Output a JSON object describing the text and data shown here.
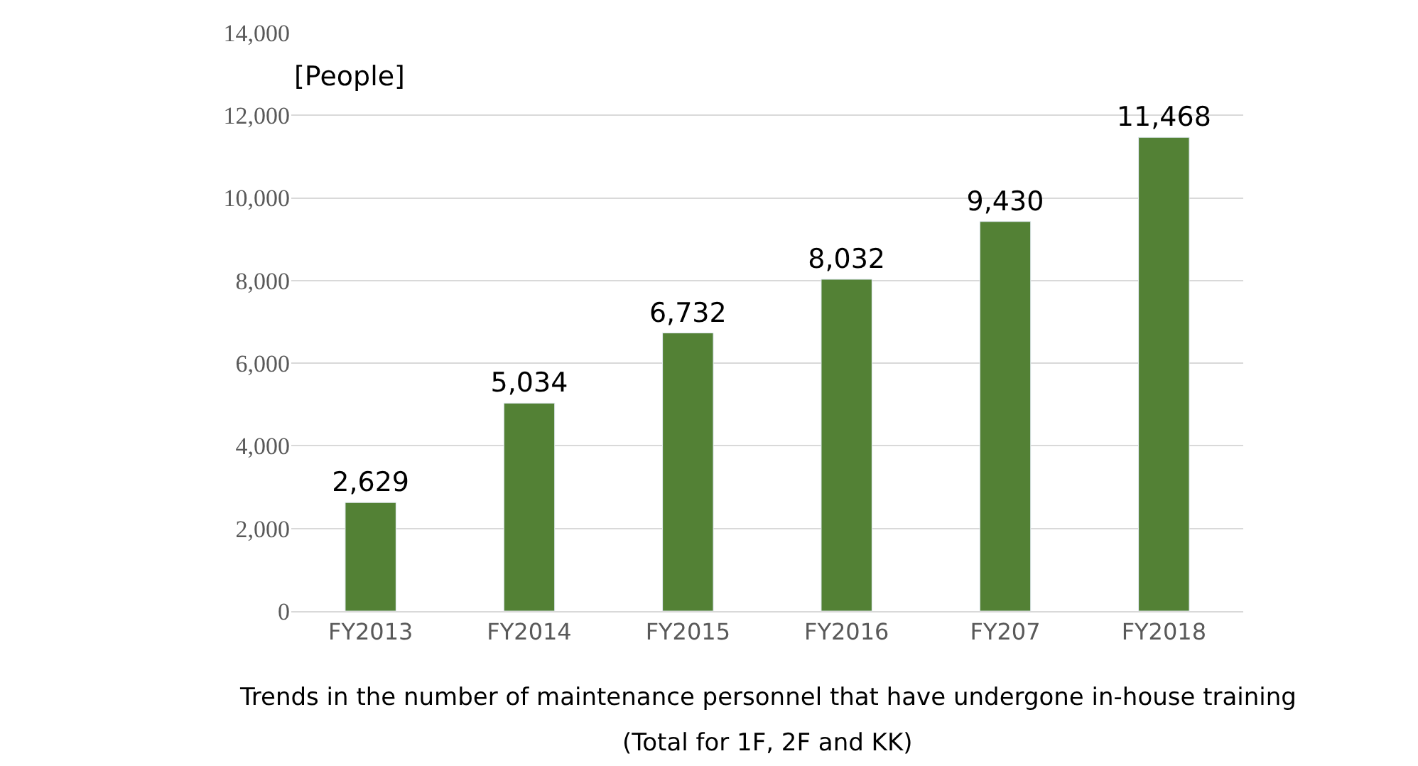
{
  "chart_data": {
    "type": "bar",
    "categories": [
      "FY2013",
      "FY2014",
      "FY2015",
      "FY2016",
      "FY207",
      "FY2018"
    ],
    "values": [
      2629,
      5034,
      6732,
      8032,
      9430,
      11468
    ],
    "color": "#538135",
    "ylabel": "[People]",
    "ylim": [
      0,
      14000
    ],
    "yticks": [
      {
        "value": 0,
        "label": "0"
      },
      {
        "value": 2000,
        "label": "2,000"
      },
      {
        "value": 4000,
        "label": "4,000"
      },
      {
        "value": 6000,
        "label": "6,000"
      },
      {
        "value": 8000,
        "label": "8,000"
      },
      {
        "value": 10000,
        "label": "10,000"
      },
      {
        "value": 12000,
        "label": "12,000"
      },
      {
        "value": 14000,
        "label": "14,000"
      }
    ],
    "grid": "y",
    "value_labels": [
      "2,629",
      "5,034",
      "6,732",
      "8,032",
      "9,430",
      "11,468"
    ],
    "legend": false,
    "annotations": [
      "Trends in the number of maintenance personnel that have undergone in-house training",
      "(Total for 1F, 2F and KK)"
    ]
  }
}
